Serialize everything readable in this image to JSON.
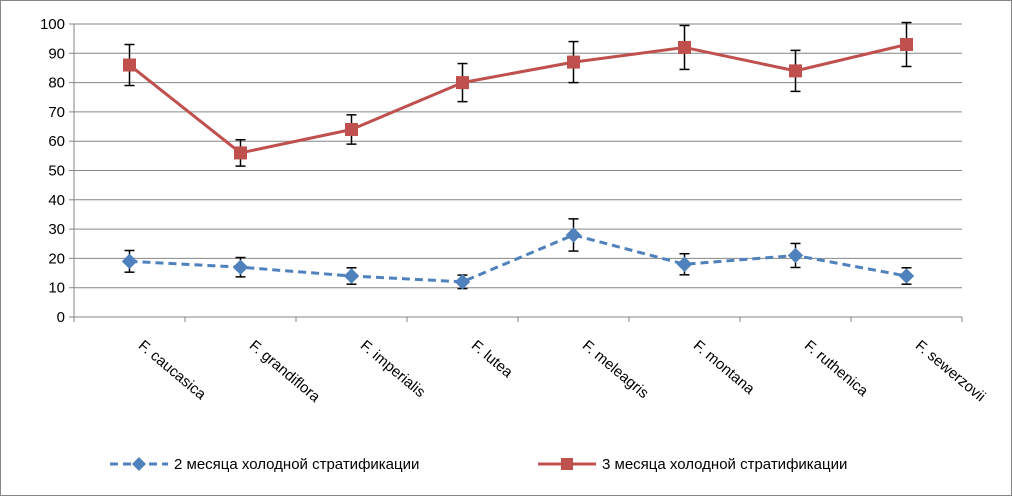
{
  "chart_data": {
    "type": "line",
    "title": "",
    "xlabel": "",
    "ylabel": "",
    "ylim": [
      0,
      100
    ],
    "yticks": [
      0,
      10,
      20,
      30,
      40,
      50,
      60,
      70,
      80,
      90,
      100
    ],
    "grid": "horizontal",
    "legend_position": "bottom",
    "categories": [
      "F. caucasica",
      "F. grandiflora",
      "F. imperialis",
      "F. lutea",
      "F. meleagris",
      "F. montana",
      "F. ruthenica",
      "F. sewerzovii"
    ],
    "series": [
      {
        "name": "2 месяца холодной стратификации",
        "values": [
          19,
          17,
          14,
          12,
          28,
          18,
          21,
          14
        ],
        "error": [
          3.7,
          3.3,
          2.8,
          2.3,
          5.5,
          3.6,
          4.1,
          2.8
        ],
        "color": "#4F81BD",
        "line_style": "dashed",
        "marker": "diamond"
      },
      {
        "name": "3 месяца холодной стратификации",
        "values": [
          86,
          56,
          64,
          80,
          87,
          92,
          84,
          93
        ],
        "error": [
          7,
          4.5,
          5,
          6.5,
          7,
          7.5,
          7,
          7.5
        ],
        "color": "#C0504D",
        "line_style": "solid",
        "marker": "square"
      }
    ]
  }
}
